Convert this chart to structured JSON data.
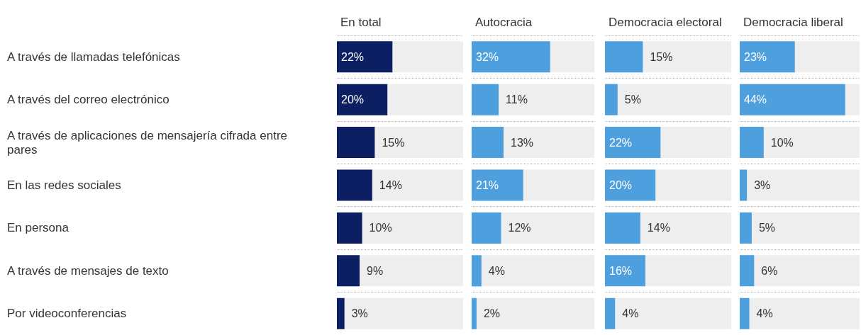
{
  "chart_data": [
    {
      "type": "bar",
      "orientation": "horizontal",
      "title": "En total",
      "categories": [
        "A través de llamadas telefónicas",
        "A través del correo electrónico",
        "A través de aplicaciones de mensajería cifrada entre pares",
        "En las redes sociales",
        "En persona",
        "A través de mensajes de texto",
        "Por videoconferencias"
      ],
      "values": [
        22,
        20,
        15,
        14,
        10,
        9,
        3
      ],
      "value_labels": [
        "22%",
        "20%",
        "15%",
        "14%",
        "10%",
        "9%",
        "3%"
      ],
      "color": "#0d1f63",
      "xlim": [
        0,
        50
      ],
      "tick_labels": "y",
      "grid": "y"
    },
    {
      "type": "bar",
      "orientation": "horizontal",
      "title": "Autocracia",
      "categories": [
        null,
        null,
        null,
        null,
        null,
        null,
        null
      ],
      "values": [
        32,
        11,
        13,
        21,
        12,
        4,
        2
      ],
      "value_labels": [
        "32%",
        "11%",
        "13%",
        "21%",
        "12%",
        "4%",
        "2%"
      ],
      "color": "#4e9fdd",
      "xlim": [
        0,
        50
      ],
      "tick_labels": false,
      "grid": "y"
    },
    {
      "type": "bar",
      "orientation": "horizontal",
      "title": "Democracia electoral",
      "categories": [
        null,
        null,
        null,
        null,
        null,
        null,
        null
      ],
      "values": [
        15,
        5,
        22,
        20,
        14,
        16,
        4
      ],
      "value_labels": [
        "15%",
        "5%",
        "22%",
        "20%",
        "14%",
        "16%",
        "4%"
      ],
      "color": "#4e9fdd",
      "xlim": [
        0,
        50
      ],
      "tick_labels": false,
      "grid": "y"
    },
    {
      "type": "bar",
      "orientation": "horizontal",
      "title": "Democracia liberal",
      "categories": [
        null,
        null,
        null,
        null,
        null,
        null,
        null
      ],
      "values": [
        23,
        44,
        10,
        3,
        5,
        6,
        4
      ],
      "value_labels": [
        "23%",
        "44%",
        "10%",
        "3%",
        "5%",
        "6%",
        "4%"
      ],
      "color": "#4e9fdd",
      "xlim": [
        0,
        50
      ],
      "tick_labels": false,
      "grid": "y"
    }
  ]
}
